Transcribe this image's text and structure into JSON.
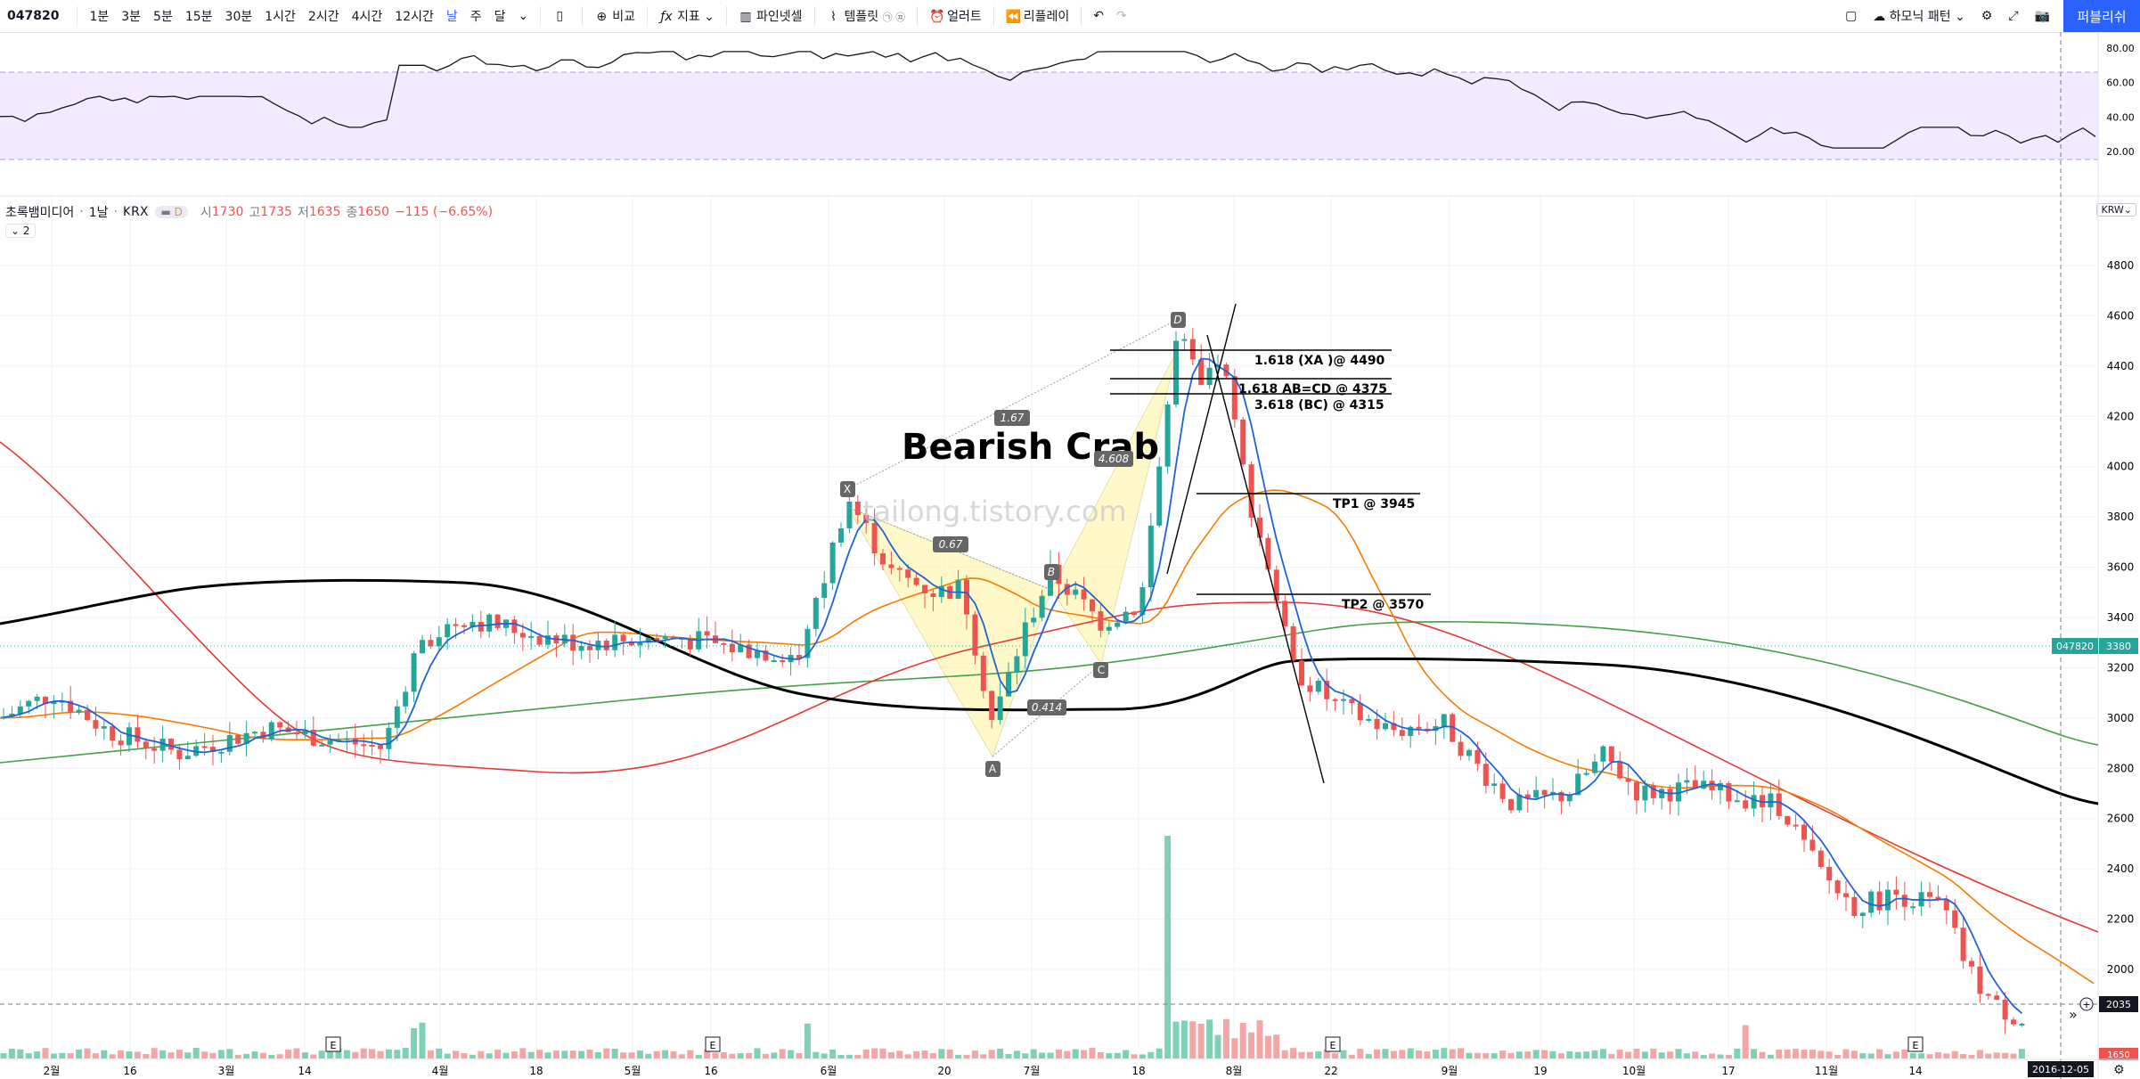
{
  "toolbar": {
    "symbol": "047820",
    "intervals": [
      "1분",
      "3분",
      "5분",
      "15분",
      "30분",
      "1시간",
      "2시간",
      "4시간",
      "12시간",
      "날",
      "주",
      "달"
    ],
    "active_interval": "날",
    "compare_label": "비교",
    "indicators_label": "지표",
    "pine_label": "파인넷셀",
    "templates_label": "템플릿",
    "alert_label": "얼러트",
    "replay_label": "리플레이",
    "harmonic_label": "하모닉 패턴",
    "publish_label": "퍼블리쉬"
  },
  "legend": {
    "name": "초록뱀미디어",
    "interval": "1날",
    "exchange": "KRX",
    "badge": "D",
    "open_label": "시",
    "open": "1730",
    "high_label": "고",
    "high": "1735",
    "low_label": "저",
    "low": "1635",
    "close_label": "종",
    "close": "1650",
    "change": "−115 (−6.65%)",
    "collapse": "2",
    "currency": "KRW"
  },
  "rsi_axis": [
    "80.00",
    "60.00",
    "40.00",
    "20.00"
  ],
  "price_axis": [
    "4800",
    "4600",
    "4400",
    "4200",
    "4000",
    "3800",
    "3600",
    "3400",
    "3200",
    "3000",
    "2800",
    "2600",
    "2400",
    "2200",
    "2000"
  ],
  "time_axis": [
    "2월",
    "16",
    "3월",
    "14",
    "4월",
    "18",
    "5월",
    "16",
    "6월",
    "20",
    "7월",
    "18",
    "8월",
    "22",
    "9월",
    "19",
    "10월",
    "17",
    "11월",
    "14"
  ],
  "last_price": {
    "symbol": "047820",
    "value": "3380"
  },
  "crosshair_price": "2035",
  "crosshair_date": "2016-12-05",
  "bottom_price": "1650",
  "pattern": {
    "title": "Bearish Crab",
    "points": {
      "X": "X",
      "A": "A",
      "B": "B",
      "C": "C",
      "D": "D"
    },
    "ratios": {
      "xd": "1.67",
      "xb": "0.67",
      "ac": "0.414",
      "bd": "4.608"
    }
  },
  "annotations": {
    "fib1": "1.618 (XA )@ 4490",
    "fib2": "1.618 AB=CD @ 4375",
    "fib3": "3.618 (BC) @ 4315",
    "tp1": "TP1 @ 3945",
    "tp2": "TP2 @ 3570"
  },
  "watermark": "tailong.tistory.com",
  "earnings_marker": "E",
  "colors": {
    "up": "#26a69a",
    "down": "#ef5350",
    "ma_blue": "#2962ff",
    "ma_orange": "#f57c00",
    "ma_red": "#e53935",
    "ma_green": "#43a047",
    "ma_black": "#000000",
    "pattern_fill": "#fff59d",
    "rsi_band": "#e9d5ff"
  }
}
